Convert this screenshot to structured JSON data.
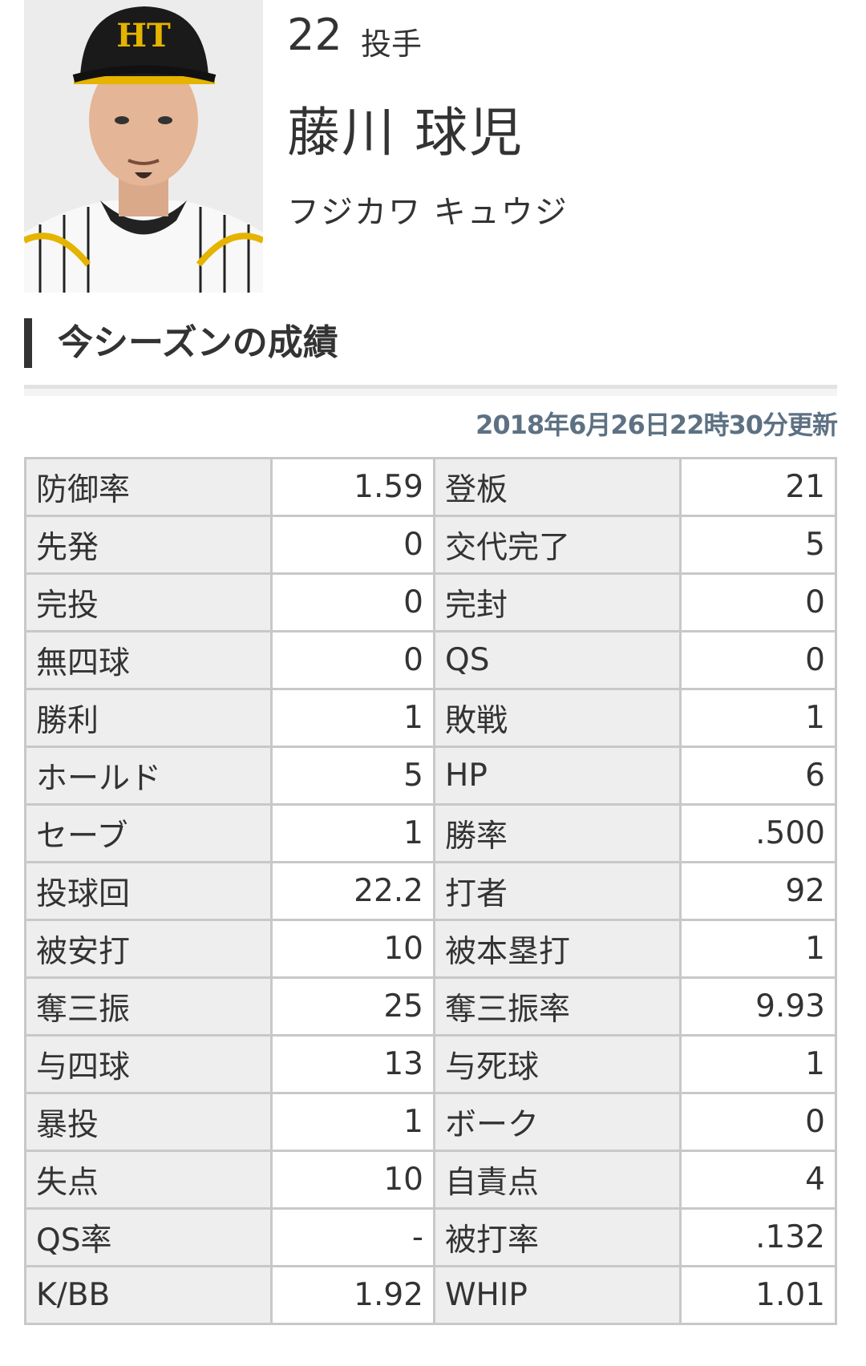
{
  "player": {
    "number": "22",
    "position": "投手",
    "name": "藤川 球児",
    "kana": "フジカワ キュウジ",
    "cap_logo": "HT"
  },
  "section_title": "今シーズンの成績",
  "updated": "2018年6月26日22時30分更新",
  "colors": {
    "updated_text": "#5d7183",
    "label_bg": "#eeeeee",
    "border": "#c8c8c8"
  },
  "stats": [
    {
      "l1": "防御率",
      "v1": "1.59",
      "l2": "登板",
      "v2": "21"
    },
    {
      "l1": "先発",
      "v1": "0",
      "l2": "交代完了",
      "v2": "5"
    },
    {
      "l1": "完投",
      "v1": "0",
      "l2": "完封",
      "v2": "0"
    },
    {
      "l1": "無四球",
      "v1": "0",
      "l2": "QS",
      "v2": "0"
    },
    {
      "l1": "勝利",
      "v1": "1",
      "l2": "敗戦",
      "v2": "1"
    },
    {
      "l1": "ホールド",
      "v1": "5",
      "l2": "HP",
      "v2": "6"
    },
    {
      "l1": "セーブ",
      "v1": "1",
      "l2": "勝率",
      "v2": ".500"
    },
    {
      "l1": "投球回",
      "v1": "22.2",
      "l2": "打者",
      "v2": "92"
    },
    {
      "l1": "被安打",
      "v1": "10",
      "l2": "被本塁打",
      "v2": "1"
    },
    {
      "l1": "奪三振",
      "v1": "25",
      "l2": "奪三振率",
      "v2": "9.93"
    },
    {
      "l1": "与四球",
      "v1": "13",
      "l2": "与死球",
      "v2": "1"
    },
    {
      "l1": "暴投",
      "v1": "1",
      "l2": "ボーク",
      "v2": "0"
    },
    {
      "l1": "失点",
      "v1": "10",
      "l2": "自責点",
      "v2": "4"
    },
    {
      "l1": "QS率",
      "v1": "-",
      "l2": "被打率",
      "v2": ".132"
    },
    {
      "l1": "K/BB",
      "v1": "1.92",
      "l2": "WHIP",
      "v2": "1.01"
    }
  ]
}
